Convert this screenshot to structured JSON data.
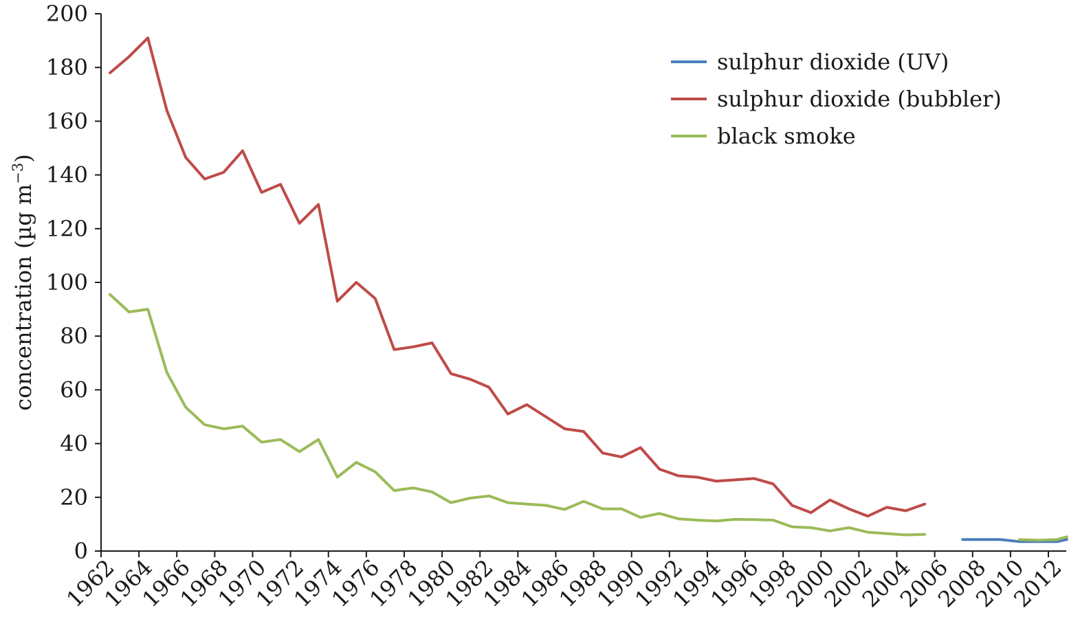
{
  "chart_data": {
    "type": "line",
    "title": "",
    "xlabel": "",
    "ylabel": "concentration (µg m",
    "ylabel_exponent": "−3",
    "ylabel_close": ")",
    "xlim": [
      1962,
      2012.5
    ],
    "ylim": [
      0,
      200
    ],
    "grid": false,
    "legend_position": "top-right",
    "y_ticks": [
      "0",
      "20",
      "40",
      "60",
      "80",
      "100",
      "120",
      "140",
      "160",
      "180",
      "200"
    ],
    "x_ticks": [
      "1962",
      "1964",
      "1966",
      "1968",
      "1970",
      "1972",
      "1974",
      "1976",
      "1978",
      "1980",
      "1982",
      "1984",
      "1986",
      "1988",
      "1990",
      "1992",
      "1994",
      "1996",
      "1998",
      "2000",
      "2002",
      "2004",
      "2006",
      "2008",
      "2010",
      "2012"
    ],
    "series": [
      {
        "name": "sulphur dioxide (UV)",
        "color": "#4a7ebb",
        "x": [
          2007,
          2008,
          2009,
          2010,
          2011,
          2012,
          2012.5
        ],
        "y": [
          4.3,
          4.3,
          4.3,
          3.5,
          3.5,
          3.5,
          4.3
        ]
      },
      {
        "name": "sulphur dioxide (bubbler)",
        "color": "#be4b48",
        "x": [
          1962,
          1963,
          1964,
          1965,
          1966,
          1967,
          1968,
          1969,
          1970,
          1971,
          1972,
          1973,
          1974,
          1975,
          1976,
          1977,
          1978,
          1979,
          1980,
          1981,
          1982,
          1983,
          1984,
          1985,
          1986,
          1987,
          1988,
          1989,
          1990,
          1991,
          1992,
          1993,
          1994,
          1995,
          1996,
          1997,
          1998,
          1999,
          2000,
          2001,
          2002,
          2003,
          2004,
          2005
        ],
        "y": [
          178,
          184,
          191,
          164,
          146.5,
          138.5,
          141,
          149,
          133.5,
          136.5,
          122,
          129,
          93,
          100,
          94,
          75,
          76,
          77.5,
          66,
          64,
          61,
          51,
          54.5,
          50,
          45.5,
          44.5,
          36.5,
          35,
          38.5,
          30.5,
          28,
          27.5,
          26,
          26.5,
          27,
          25,
          17,
          14.3,
          19,
          15.7,
          13,
          16.3,
          15,
          17.5
        ]
      },
      {
        "name": "black smoke",
        "color": "#9bbb59",
        "x": [
          1962,
          1963,
          1964,
          1965,
          1966,
          1967,
          1968,
          1969,
          1970,
          1971,
          1972,
          1973,
          1974,
          1975,
          1976,
          1977,
          1978,
          1979,
          1980,
          1981,
          1982,
          1983,
          1984,
          1985,
          1986,
          1987,
          1988,
          1989,
          1990,
          1991,
          1992,
          1993,
          1994,
          1995,
          1996,
          1997,
          1998,
          1999,
          2000,
          2001,
          2002,
          2003,
          2004,
          2005,
          null,
          2010,
          2011,
          2012,
          2012.5
        ],
        "y": [
          95.5,
          89,
          90,
          66.5,
          53.5,
          47,
          45.5,
          46.5,
          40.5,
          41.5,
          37,
          41.5,
          27.5,
          33,
          29.5,
          22.5,
          23.5,
          22,
          18,
          19.7,
          20.5,
          18,
          17.5,
          17,
          15.5,
          18.5,
          15.7,
          15.7,
          12.5,
          14,
          12,
          11.5,
          11.2,
          11.8,
          11.7,
          11.5,
          9,
          8.7,
          7.5,
          8.7,
          7,
          6.5,
          6,
          6.2,
          null,
          4.3,
          4.0,
          4.3,
          5.3
        ]
      }
    ]
  }
}
